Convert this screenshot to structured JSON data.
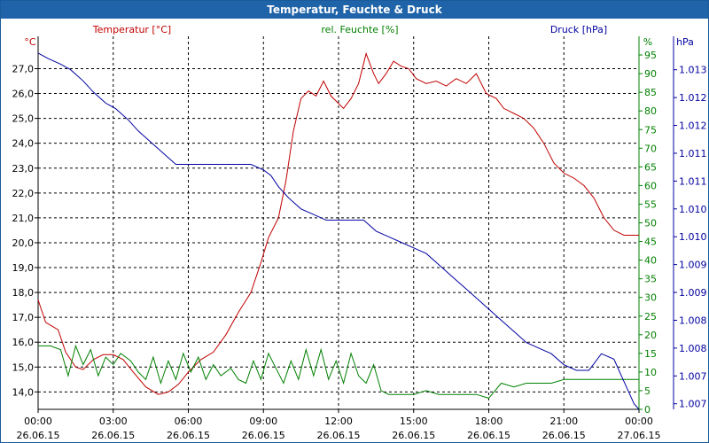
{
  "window": {
    "title": "Temperatur, Feuchte & Druck"
  },
  "colors": {
    "temperature": "#c00000",
    "humidity": "#008000",
    "pressure": "#0000a0",
    "grid": "#000000",
    "titlebar": "#1f63a8"
  },
  "chart_data": {
    "type": "line",
    "title": "Temperatur, Feuchte & Druck",
    "legend": {
      "temperature": "Temperatur [°C]",
      "humidity": "rel. Feuchte [%]",
      "pressure": "Druck [hPa]"
    },
    "x_axis": {
      "range_hours": [
        0,
        24
      ],
      "ticks": [
        {
          "h": 0,
          "time": "00:00",
          "date": "26.06.15"
        },
        {
          "h": 3,
          "time": "03:00",
          "date": "26.06.15"
        },
        {
          "h": 6,
          "time": "06:00",
          "date": "26.06.15"
        },
        {
          "h": 9,
          "time": "09:00",
          "date": "26.06.15"
        },
        {
          "h": 12,
          "time": "12:00",
          "date": "26.06.15"
        },
        {
          "h": 15,
          "time": "15:00",
          "date": "26.06.15"
        },
        {
          "h": 18,
          "time": "18:00",
          "date": "26.06.15"
        },
        {
          "h": 21,
          "time": "21:00",
          "date": "26.06.15"
        },
        {
          "h": 24,
          "time": "00:00",
          "date": "27.06.15"
        }
      ]
    },
    "y_left": {
      "unit": "°C",
      "range": [
        13.3,
        28.3
      ],
      "ticks": [
        "14,0",
        "15,0",
        "16,0",
        "17,0",
        "18,0",
        "19,0",
        "20,0",
        "21,0",
        "22,0",
        "23,0",
        "24,0",
        "25,0",
        "26,0",
        "27,0"
      ],
      "tick_values": [
        14,
        15,
        16,
        17,
        18,
        19,
        20,
        21,
        22,
        23,
        24,
        25,
        26,
        27
      ]
    },
    "y_mid": {
      "unit": "%",
      "range": [
        0,
        100
      ],
      "ticks": [
        "0",
        "5",
        "10",
        "15",
        "20",
        "25",
        "30",
        "35",
        "40",
        "45",
        "50",
        "55",
        "60",
        "65",
        "70",
        "75",
        "80",
        "85",
        "90",
        "95"
      ],
      "tick_values": [
        0,
        5,
        10,
        15,
        20,
        25,
        30,
        35,
        40,
        45,
        50,
        55,
        60,
        65,
        70,
        75,
        80,
        85,
        90,
        95
      ]
    },
    "y_right": {
      "unit": "hPa",
      "range": [
        1006.8,
        1013.5
      ],
      "ticks": [
        "1.007",
        "1.007",
        "1.008",
        "1.008",
        "1.009",
        "1.009",
        "1.010",
        "1.010",
        "1.011",
        "1.011",
        "1.012",
        "1.012",
        "1.013"
      ],
      "tick_values": [
        1006.9,
        1007.4,
        1007.9,
        1008.4,
        1008.9,
        1009.4,
        1009.9,
        1010.4,
        1010.9,
        1011.4,
        1011.9,
        1012.4,
        1012.9
      ]
    },
    "series": [
      {
        "name": "Temperatur [°C]",
        "axis": "left",
        "color": "#c00000",
        "x": [
          0,
          0.3,
          0.8,
          1.1,
          1.5,
          1.8,
          2.2,
          2.6,
          3.0,
          3.4,
          3.8,
          4.3,
          4.8,
          5.2,
          5.6,
          6.0,
          6.5,
          7.0,
          7.5,
          8.0,
          8.5,
          8.9,
          9.2,
          9.6,
          9.9,
          10.2,
          10.5,
          10.8,
          11.1,
          11.4,
          11.7,
          11.9,
          12.2,
          12.5,
          12.8,
          13.1,
          13.4,
          13.6,
          13.9,
          14.2,
          14.5,
          14.8,
          15.1,
          15.5,
          15.9,
          16.3,
          16.7,
          17.1,
          17.5,
          17.9,
          18.3,
          18.6,
          19.0,
          19.4,
          19.8,
          20.2,
          20.6,
          21.0,
          21.4,
          21.8,
          22.2,
          22.6,
          23.0,
          23.4,
          23.8,
          24.0
        ],
        "values": [
          17.7,
          16.8,
          16.5,
          15.6,
          15.0,
          14.9,
          15.3,
          15.5,
          15.5,
          15.3,
          14.8,
          14.2,
          13.9,
          14.0,
          14.3,
          14.8,
          15.3,
          15.6,
          16.3,
          17.2,
          18.0,
          19.2,
          20.2,
          21.0,
          22.5,
          24.5,
          25.8,
          26.1,
          25.9,
          26.5,
          25.9,
          25.7,
          25.4,
          25.8,
          26.4,
          27.6,
          26.8,
          26.4,
          26.8,
          27.3,
          27.1,
          27.0,
          26.6,
          26.4,
          26.5,
          26.3,
          26.6,
          26.4,
          26.8,
          26.0,
          25.8,
          25.4,
          25.2,
          25.0,
          24.6,
          24.0,
          23.2,
          22.8,
          22.6,
          22.3,
          21.8,
          21.0,
          20.5,
          20.3,
          20.3,
          20.3
        ],
        "x_note": "hours since 26.06.15 00:00"
      },
      {
        "name": "rel. Feuchte [%]",
        "axis": "mid",
        "color": "#008000",
        "x": [
          0,
          0.5,
          0.9,
          1.2,
          1.5,
          1.8,
          2.1,
          2.4,
          2.7,
          3.0,
          3.3,
          3.7,
          4.0,
          4.3,
          4.6,
          4.9,
          5.2,
          5.5,
          5.8,
          6.1,
          6.4,
          6.7,
          7.0,
          7.3,
          7.7,
          8.0,
          8.3,
          8.6,
          8.9,
          9.2,
          9.5,
          9.8,
          10.1,
          10.4,
          10.7,
          11.0,
          11.3,
          11.6,
          11.9,
          12.2,
          12.5,
          12.8,
          13.1,
          13.4,
          13.7,
          14.0,
          14.5,
          15.0,
          15.5,
          16.0,
          16.5,
          17.0,
          17.5,
          18.0,
          18.5,
          19.0,
          19.5,
          20.0,
          20.5,
          21.0,
          21.5,
          22.0,
          22.5,
          23.0,
          23.5,
          24.0
        ],
        "values": [
          17,
          17,
          16,
          9,
          17,
          12,
          16,
          9,
          14,
          12,
          15,
          13,
          10,
          8,
          14,
          7,
          13,
          8,
          15,
          10,
          14,
          8,
          12,
          9,
          11,
          8,
          7,
          13,
          8,
          15,
          11,
          7,
          13,
          8,
          16,
          9,
          16,
          8,
          13,
          7,
          15,
          9,
          7,
          12,
          5,
          4,
          4,
          4,
          5,
          4,
          4,
          4,
          4,
          3,
          7,
          6,
          7,
          7,
          7,
          8,
          8,
          8,
          8,
          8,
          8,
          8
        ]
      },
      {
        "name": "Druck [hPa]",
        "axis": "right",
        "color": "#0000a0",
        "x": [
          0,
          0.4,
          0.9,
          1.3,
          1.8,
          2.2,
          2.7,
          3.1,
          3.6,
          4.0,
          4.5,
          5.0,
          5.5,
          6.0,
          6.5,
          7.0,
          7.5,
          8.0,
          8.5,
          9.0,
          9.3,
          9.6,
          10.0,
          10.5,
          11.0,
          11.5,
          12.0,
          12.5,
          13.0,
          13.5,
          14.0,
          14.5,
          15.0,
          15.5,
          16.0,
          16.5,
          17.0,
          17.5,
          18.0,
          18.5,
          19.0,
          19.5,
          20.0,
          20.5,
          21.0,
          21.5,
          22.0,
          22.5,
          23.0,
          23.3,
          23.6,
          23.8,
          24.0
        ],
        "values": [
          1013.2,
          1013.1,
          1013.0,
          1012.9,
          1012.7,
          1012.5,
          1012.3,
          1012.2,
          1012.0,
          1011.8,
          1011.6,
          1011.4,
          1011.2,
          1011.2,
          1011.2,
          1011.2,
          1011.2,
          1011.2,
          1011.2,
          1011.1,
          1011.0,
          1010.8,
          1010.6,
          1010.4,
          1010.3,
          1010.2,
          1010.2,
          1010.2,
          1010.2,
          1010.0,
          1009.9,
          1009.8,
          1009.7,
          1009.6,
          1009.4,
          1009.2,
          1009.0,
          1008.8,
          1008.6,
          1008.4,
          1008.2,
          1008.0,
          1007.9,
          1007.8,
          1007.6,
          1007.5,
          1007.5,
          1007.8,
          1007.7,
          1007.4,
          1007.1,
          1006.9,
          1006.8
        ]
      }
    ]
  }
}
